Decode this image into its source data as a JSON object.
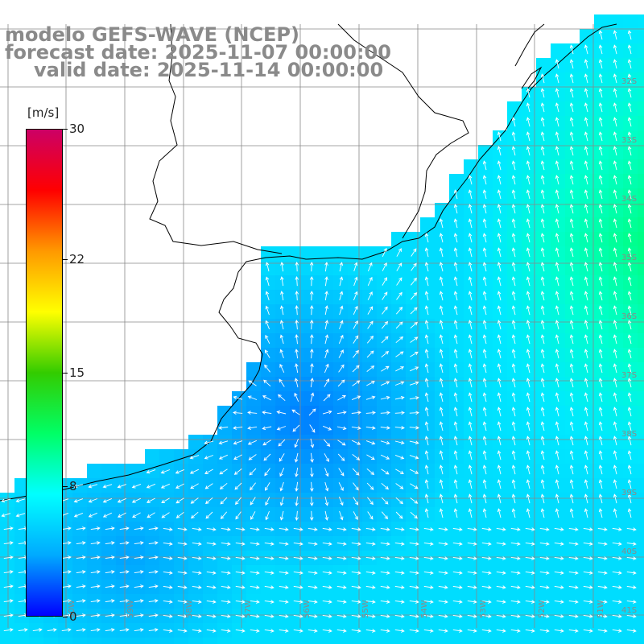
{
  "header": {
    "model": "modelo GEFS-WAVE (NCEP)",
    "forecast": "forecast date: 2025-11-07 00:00:00",
    "valid": "valid date: 2025-11-14 00:00:00"
  },
  "colorbar": {
    "units": "[m/s]",
    "min": 0,
    "max": 30,
    "tick_labels": [
      "30",
      "22",
      "15",
      "8",
      "0"
    ],
    "colors": [
      "#0000ff",
      "#00aaff",
      "#00ffff",
      "#00ff66",
      "#33cc00",
      "#ffff00",
      "#ff9900",
      "#ff0000",
      "#cc0066"
    ]
  },
  "map": {
    "latitude_labels": [
      "32S",
      "33S",
      "34S",
      "35S",
      "36S",
      "37S",
      "38S",
      "39S",
      "40S",
      "41S"
    ],
    "longitude_labels": [
      "60W",
      "59W",
      "58W",
      "57W",
      "56W",
      "55W",
      "54W",
      "53W",
      "52W",
      "51W"
    ],
    "grid": true,
    "land_color": "#ffffff",
    "coastline_color": "#000000",
    "arrow_color": "#ffffff"
  }
}
